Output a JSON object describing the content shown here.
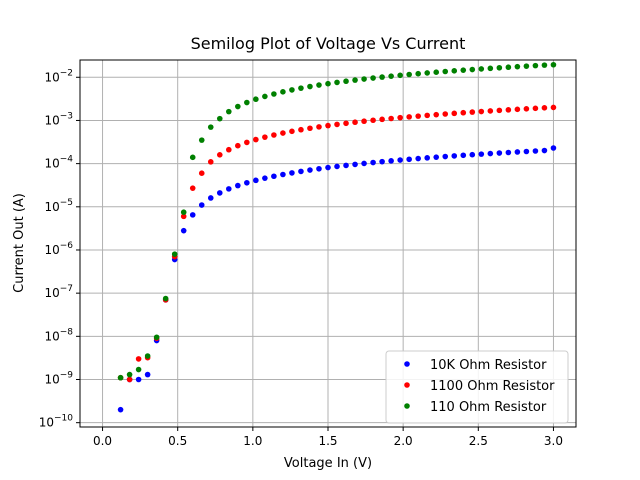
{
  "chart_data": {
    "type": "scatter",
    "title": "Semilog Plot of Voltage Vs Current",
    "xlabel": "Voltage In (V)",
    "ylabel": "Current Out (A)",
    "xlim": [
      -0.15,
      3.15
    ],
    "ylim_log10": [
      -10.1,
      -1.6
    ],
    "yscale": "log",
    "grid": true,
    "legend_position": "lower-right",
    "x_ticks": [
      {
        "value": 0.0,
        "label": "0.0"
      },
      {
        "value": 0.5,
        "label": "0.5"
      },
      {
        "value": 1.0,
        "label": "1.0"
      },
      {
        "value": 1.5,
        "label": "1.5"
      },
      {
        "value": 2.0,
        "label": "2.0"
      },
      {
        "value": 2.5,
        "label": "2.5"
      },
      {
        "value": 3.0,
        "label": "3.0"
      }
    ],
    "y_ticks": [
      {
        "exp": -10,
        "label": "10",
        "sup": "−10"
      },
      {
        "exp": -9,
        "label": "10",
        "sup": "−9"
      },
      {
        "exp": -8,
        "label": "10",
        "sup": "−8"
      },
      {
        "exp": -7,
        "label": "10",
        "sup": "−7"
      },
      {
        "exp": -6,
        "label": "10",
        "sup": "−6"
      },
      {
        "exp": -5,
        "label": "10",
        "sup": "−5"
      },
      {
        "exp": -4,
        "label": "10",
        "sup": "−4"
      },
      {
        "exp": -3,
        "label": "10",
        "sup": "−3"
      },
      {
        "exp": -2,
        "label": "10",
        "sup": "−2"
      }
    ],
    "x": [
      0.12,
      0.18,
      0.24,
      0.3,
      0.36,
      0.42,
      0.48,
      0.54,
      0.6,
      0.66,
      0.72,
      0.78,
      0.84,
      0.9,
      0.96,
      1.02,
      1.08,
      1.14,
      1.2,
      1.26,
      1.32,
      1.38,
      1.44,
      1.5,
      1.56,
      1.62,
      1.68,
      1.74,
      1.8,
      1.86,
      1.92,
      1.98,
      2.04,
      2.1,
      2.16,
      2.22,
      2.28,
      2.34,
      2.4,
      2.46,
      2.52,
      2.58,
      2.64,
      2.7,
      2.76,
      2.82,
      2.88,
      2.94,
      3.0
    ],
    "series": [
      {
        "name": "10K Ohm Resistor",
        "color": "#0000ff",
        "y": [
          2e-10,
          1e-09,
          1e-09,
          1.3e-09,
          8e-09,
          7e-08,
          6e-07,
          2.8e-06,
          6.5e-06,
          1.1e-05,
          1.6e-05,
          2.1e-05,
          2.6e-05,
          3.1e-05,
          3.6e-05,
          4.1e-05,
          4.6e-05,
          5.1e-05,
          5.6e-05,
          6.1e-05,
          6.6e-05,
          7.1e-05,
          7.6e-05,
          8.1e-05,
          8.6e-05,
          9.1e-05,
          9.6e-05,
          0.000101,
          0.000106,
          0.000111,
          0.000116,
          0.000121,
          0.000126,
          0.000131,
          0.000136,
          0.000141,
          0.000146,
          0.000151,
          0.000156,
          0.000161,
          0.000166,
          0.000171,
          0.000176,
          0.000181,
          0.000186,
          0.000191,
          0.000196,
          0.000201,
          0.00023
        ]
      },
      {
        "name": "1100 Ohm Resistor",
        "color": "#ff0000",
        "y": [
          1.1e-09,
          1e-09,
          3e-09,
          3.2e-09,
          9e-09,
          7e-08,
          7e-07,
          6e-06,
          2.7e-05,
          6e-05,
          0.00011,
          0.00016,
          0.00021,
          0.00026,
          0.00031,
          0.00036,
          0.00041,
          0.00046,
          0.00051,
          0.00056,
          0.00061,
          0.00066,
          0.00071,
          0.00076,
          0.00081,
          0.00086,
          0.00091,
          0.00096,
          0.00101,
          0.00106,
          0.00111,
          0.00116,
          0.00121,
          0.00126,
          0.00131,
          0.00136,
          0.00141,
          0.00146,
          0.00151,
          0.00156,
          0.00161,
          0.00166,
          0.00171,
          0.00176,
          0.00181,
          0.00186,
          0.00191,
          0.00196,
          0.002
        ]
      },
      {
        "name": "110 Ohm Resistor",
        "color": "#008000",
        "y": [
          1.1e-09,
          1.3e-09,
          1.7e-09,
          3.5e-09,
          9.5e-09,
          7.5e-08,
          8e-07,
          7.5e-06,
          0.00014,
          0.00035,
          0.0007,
          0.0011,
          0.0016,
          0.0021,
          0.0026,
          0.0031,
          0.0036,
          0.0041,
          0.0046,
          0.0051,
          0.0056,
          0.0061,
          0.0066,
          0.0071,
          0.0076,
          0.0081,
          0.0086,
          0.0091,
          0.0096,
          0.0101,
          0.0106,
          0.0111,
          0.0116,
          0.0121,
          0.0126,
          0.0131,
          0.0136,
          0.0141,
          0.0146,
          0.0151,
          0.0156,
          0.0161,
          0.0166,
          0.0171,
          0.0176,
          0.0181,
          0.0186,
          0.0191,
          0.0195
        ]
      }
    ]
  }
}
